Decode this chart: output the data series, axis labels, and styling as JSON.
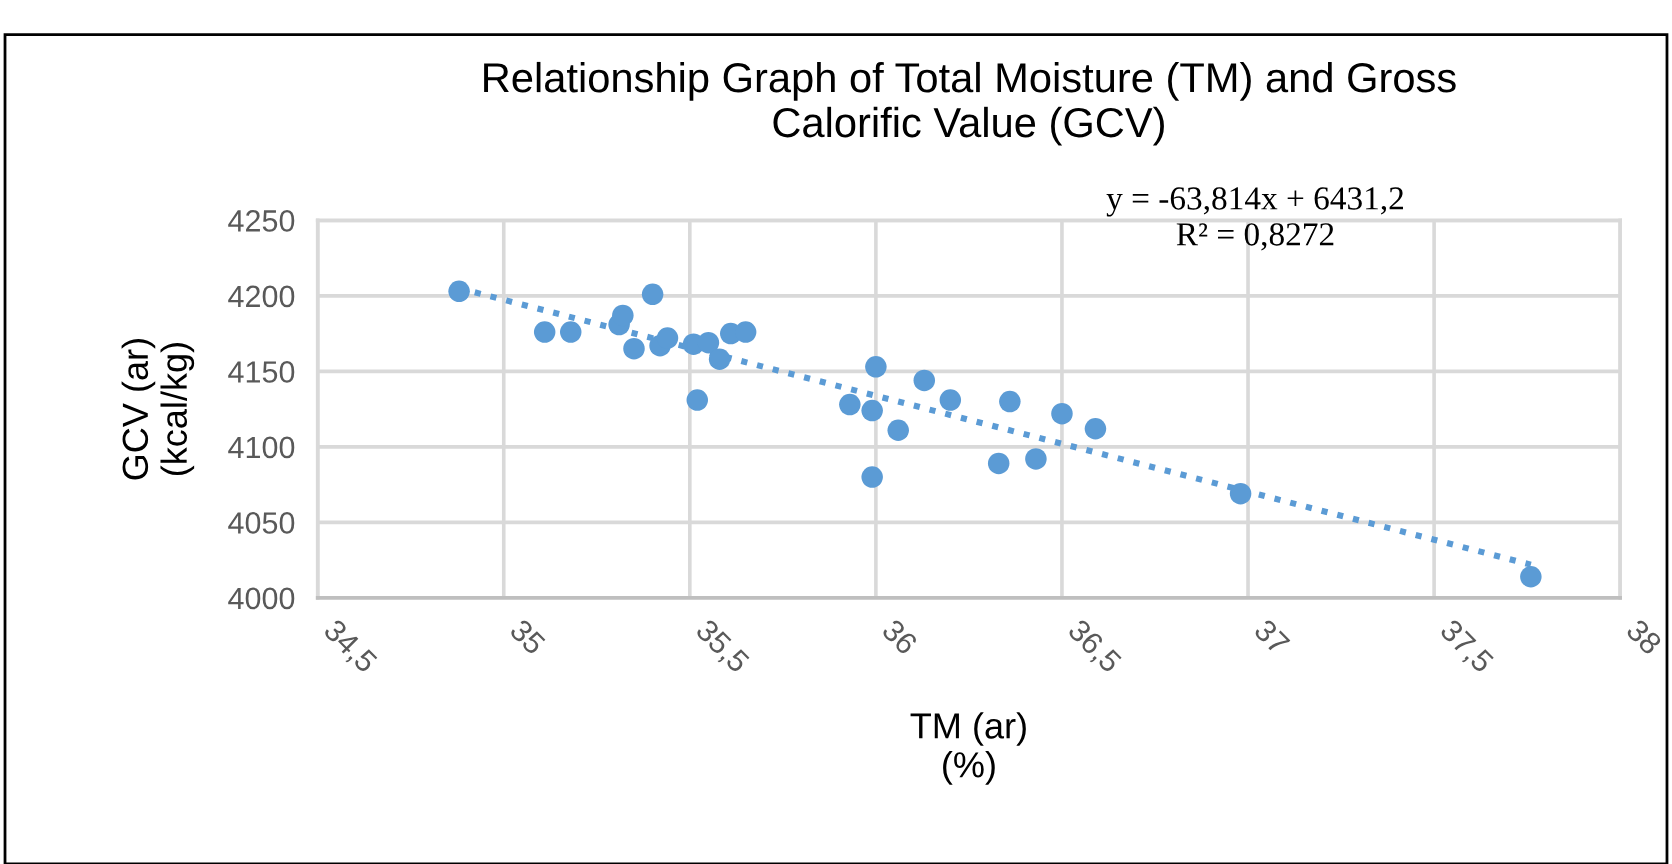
{
  "chart_data": {
    "type": "scatter",
    "title": "Relationship Graph of Total Moisture (TM) and Gross\nCalorific Value (GCV)",
    "xlabel": "TM (ar)\n(%)",
    "ylabel": "GCV (ar)\n(kcal/kg)",
    "annotations": [
      "y = -63,814x + 6431,2",
      "R² = 0,8272"
    ],
    "series": [
      {
        "color": "#5b9bd5",
        "marker": "circle",
        "x": [
          34.88,
          35.11,
          35.18,
          35.31,
          35.32,
          35.4,
          35.35,
          35.42,
          35.44,
          35.51,
          35.55,
          35.58,
          35.61,
          35.65,
          35.52,
          35.93,
          36.0,
          35.99,
          36.06,
          35.99,
          36.13,
          36.2,
          36.36,
          36.33,
          36.43,
          36.5,
          36.59,
          36.98,
          37.76
        ],
        "values": [
          4203,
          4176,
          4176,
          4181,
          4187,
          4201,
          4165,
          4167,
          4172,
          4168,
          4169,
          4158,
          4175,
          4176,
          4131,
          4128,
          4153,
          4124,
          4111,
          4080,
          4144,
          4131,
          4130,
          4089,
          4092,
          4122,
          4112,
          4069,
          4014
        ]
      },
      {
        "type": "line",
        "color": "#5b9bd5",
        "line_style": "dotted",
        "marker": "none",
        "x": [
          34.88,
          37.76
        ],
        "values": [
          4205,
          4022
        ]
      }
    ],
    "xlim": [
      34.5,
      38
    ],
    "xticks": [
      {
        "value": 34.5,
        "label": "34,5"
      },
      35,
      {
        "value": 35.5,
        "label": "35,5"
      },
      36,
      {
        "value": 36.5,
        "label": "36,5"
      },
      37,
      {
        "value": 37.5,
        "label": "37,5"
      },
      38
    ],
    "ylim": [
      4000,
      4250
    ],
    "yticks": [
      4000,
      4050,
      4100,
      4150,
      4200,
      4250
    ],
    "grid": true,
    "legend": false
  }
}
